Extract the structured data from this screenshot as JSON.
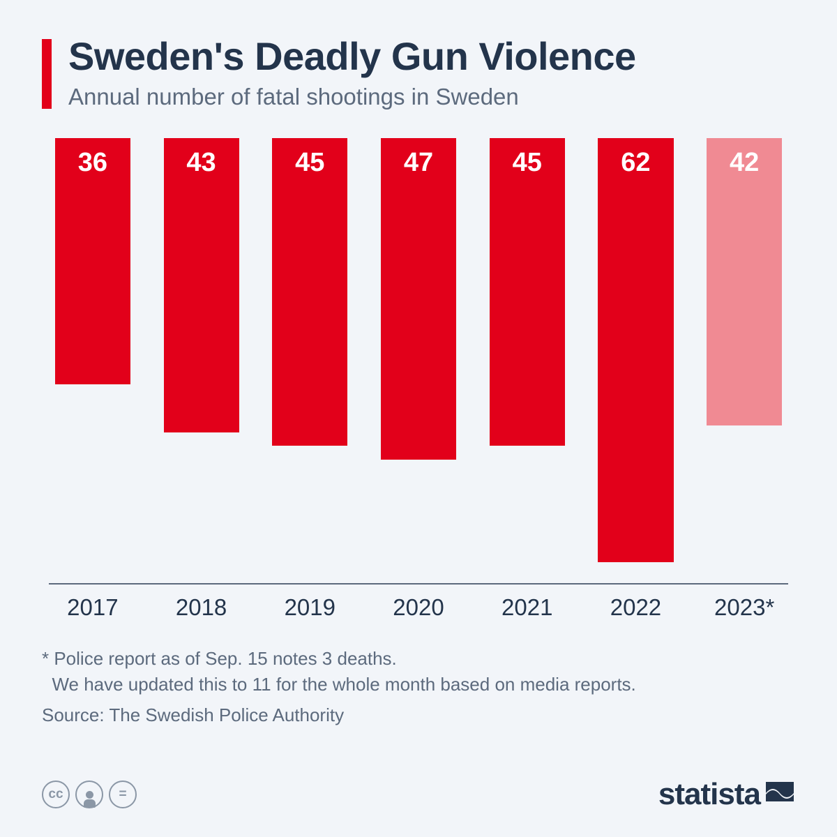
{
  "header": {
    "title": "Sweden's Deadly Gun Violence",
    "subtitle": "Annual number of fatal shootings in Sweden",
    "accent_color": "#e2001a",
    "title_color": "#23344b",
    "subtitle_color": "#5c6a7d",
    "title_fontsize": 56,
    "subtitle_fontsize": 33
  },
  "chart": {
    "type": "bar",
    "categories": [
      "2017",
      "2018",
      "2019",
      "2020",
      "2021",
      "2022",
      "2023*"
    ],
    "values": [
      36,
      43,
      45,
      47,
      45,
      62,
      42
    ],
    "bar_colors": [
      "#e2001a",
      "#e2001a",
      "#e2001a",
      "#e2001a",
      "#e2001a",
      "#e2001a",
      "#f08a93"
    ],
    "value_label_color": "#ffffff",
    "value_label_fontsize": 38,
    "x_label_fontsize": 33,
    "x_label_color": "#23344b",
    "ylim": [
      0,
      65
    ],
    "background_color": "#f2f5f9",
    "axis_color": "#5c6a7d",
    "bar_width_pct": 86
  },
  "footnotes": {
    "line1": "* Police report as of Sep. 15 notes 3 deaths.",
    "line2": "  We have updated this to 11 for the whole month based on media reports.",
    "source": "Source: The Swedish Police Authority",
    "color": "#5c6a7d",
    "fontsize": 26
  },
  "footer": {
    "cc_icons": [
      "cc",
      "person",
      "equals"
    ],
    "logo_text": "statista",
    "logo_color": "#23344b"
  }
}
